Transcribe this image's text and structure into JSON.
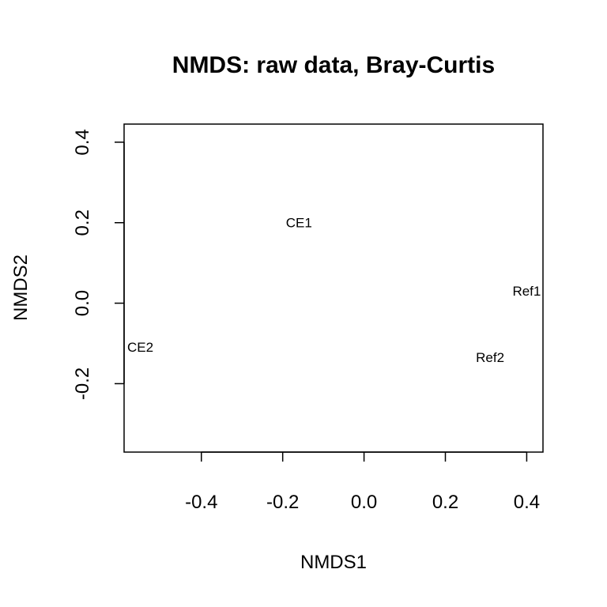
{
  "chart_data": {
    "type": "scatter",
    "title": "NMDS: raw data, Bray-Curtis",
    "xlabel": "NMDS1",
    "ylabel": "NMDS2",
    "xlim": [
      -0.59,
      0.44
    ],
    "ylim": [
      -0.37,
      0.445
    ],
    "xticks": [
      "-0.4",
      "-0.2",
      "0.0",
      "0.2",
      "0.4"
    ],
    "yticks": [
      "-0.2",
      "0.0",
      "0.2",
      "0.4"
    ],
    "grid": false,
    "points": [
      {
        "label": "CE1",
        "x": -0.16,
        "y": 0.2
      },
      {
        "label": "CE2",
        "x": -0.55,
        "y": -0.11
      },
      {
        "label": "Ref1",
        "x": 0.4,
        "y": 0.03
      },
      {
        "label": "Ref2",
        "x": 0.31,
        "y": -0.135
      }
    ]
  }
}
